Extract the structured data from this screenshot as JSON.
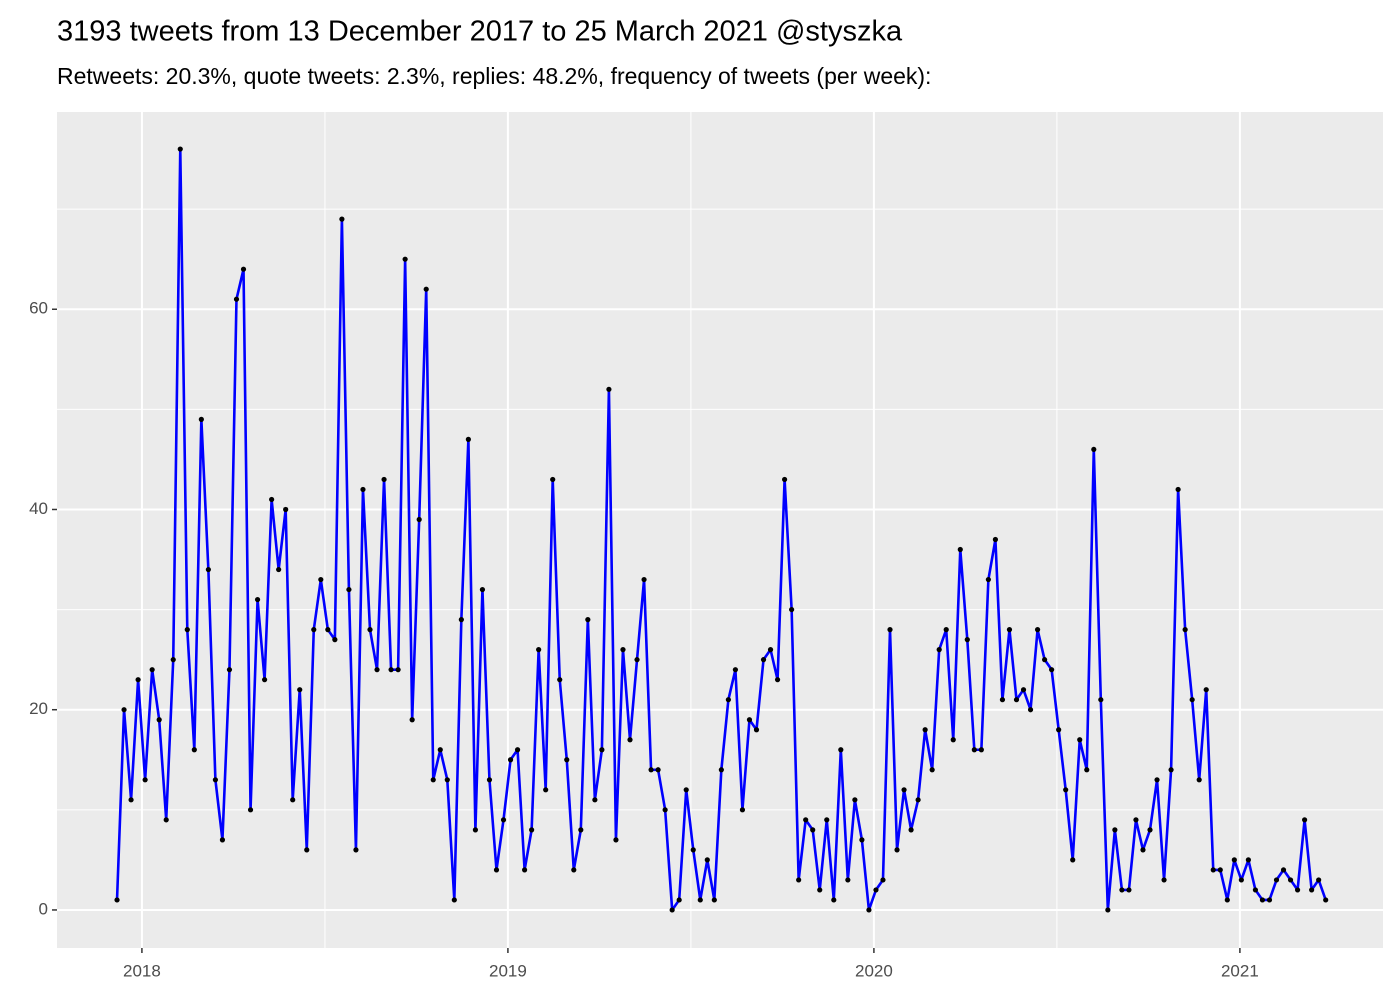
{
  "chart_data": {
    "type": "line",
    "title": "3193 tweets from 13 December 2017 to 25 March 2021 @styszka",
    "subtitle": "Retweets: 20.3%, quote tweets: 2.3%, replies: 48.2%, frequency of tweets (per week):",
    "x": [
      2017.932,
      2017.9512,
      2017.9704,
      2017.9896,
      2018.0088,
      2018.028,
      2018.0472,
      2018.0664,
      2018.0856,
      2018.1048,
      2018.124,
      2018.1432,
      2018.1624,
      2018.1816,
      2018.2008,
      2018.22,
      2018.2392,
      2018.2584,
      2018.2776,
      2018.2968,
      2018.316,
      2018.3352,
      2018.3544,
      2018.3736,
      2018.3928,
      2018.412,
      2018.4312,
      2018.4504,
      2018.4696,
      2018.4888,
      2018.508,
      2018.5272,
      2018.5464,
      2018.5656,
      2018.5848,
      2018.604,
      2018.6232,
      2018.6424,
      2018.6616,
      2018.6808,
      2018.7,
      2018.7192,
      2018.7384,
      2018.7576,
      2018.7768,
      2018.796,
      2018.8152,
      2018.8344,
      2018.8536,
      2018.8728,
      2018.892,
      2018.9112,
      2018.9304,
      2018.9496,
      2018.9688,
      2018.988,
      2019.0072,
      2019.0264,
      2019.0456,
      2019.0648,
      2019.084,
      2019.1032,
      2019.1224,
      2019.1416,
      2019.1608,
      2019.18,
      2019.1992,
      2019.2184,
      2019.2376,
      2019.2568,
      2019.276,
      2019.2952,
      2019.3144,
      2019.3336,
      2019.3528,
      2019.372,
      2019.3912,
      2019.4104,
      2019.4296,
      2019.4488,
      2019.468,
      2019.4872,
      2019.5064,
      2019.5256,
      2019.5448,
      2019.564,
      2019.5832,
      2019.6024,
      2019.6216,
      2019.6408,
      2019.66,
      2019.6792,
      2019.6984,
      2019.7176,
      2019.7368,
      2019.756,
      2019.7752,
      2019.7944,
      2019.8136,
      2019.8328,
      2019.852,
      2019.8712,
      2019.8904,
      2019.9096,
      2019.9288,
      2019.948,
      2019.9672,
      2019.9864,
      2020.0056,
      2020.0248,
      2020.044,
      2020.0632,
      2020.0824,
      2020.1016,
      2020.1208,
      2020.14,
      2020.1592,
      2020.1784,
      2020.1976,
      2020.2168,
      2020.236,
      2020.2552,
      2020.2744,
      2020.2936,
      2020.3128,
      2020.332,
      2020.3512,
      2020.3704,
      2020.3896,
      2020.4088,
      2020.428,
      2020.4472,
      2020.4664,
      2020.4856,
      2020.5048,
      2020.524,
      2020.5432,
      2020.5624,
      2020.5816,
      2020.6008,
      2020.62,
      2020.6392,
      2020.6584,
      2020.6776,
      2020.6968,
      2020.716,
      2020.7352,
      2020.7544,
      2020.7736,
      2020.7928,
      2020.812,
      2020.8312,
      2020.8504,
      2020.8696,
      2020.8888,
      2020.908,
      2020.9272,
      2020.9464,
      2020.9656,
      2020.9848,
      2021.004,
      2021.0232,
      2021.0424,
      2021.0616,
      2021.0808,
      2021.1,
      2021.1192,
      2021.1384,
      2021.1576,
      2021.1768,
      2021.196,
      2021.2152,
      2021.2344
    ],
    "series": [
      {
        "color": "#0000ff",
        "point_color": "#000000",
        "values": [
          1,
          20,
          11,
          23,
          13,
          24,
          19,
          9,
          25,
          76,
          28,
          16,
          49,
          34,
          13,
          7,
          24,
          61,
          64,
          10,
          31,
          23,
          41,
          34,
          40,
          11,
          22,
          6,
          28,
          33,
          28,
          27,
          69,
          32,
          6,
          42,
          28,
          24,
          43,
          24,
          24,
          65,
          19,
          39,
          62,
          13,
          16,
          13,
          1,
          29,
          47,
          8,
          32,
          13,
          4,
          9,
          15,
          16,
          4,
          8,
          26,
          12,
          43,
          23,
          15,
          4,
          8,
          29,
          11,
          16,
          52,
          7,
          26,
          17,
          25,
          33,
          14,
          14,
          10,
          0,
          1,
          12,
          6,
          1,
          5,
          1,
          14,
          21,
          24,
          10,
          19,
          18,
          25,
          26,
          23,
          43,
          30,
          3,
          9,
          8,
          2,
          9,
          1,
          16,
          3,
          11,
          7,
          0,
          2,
          3,
          28,
          6,
          12,
          8,
          11,
          18,
          14,
          26,
          28,
          17,
          36,
          27,
          16,
          16,
          33,
          37,
          21,
          28,
          21,
          22,
          20,
          28,
          25,
          24,
          18,
          12,
          5,
          17,
          14,
          46,
          21,
          0,
          8,
          2,
          2,
          9,
          6,
          8,
          13,
          3,
          14,
          42,
          28,
          21,
          13,
          22,
          4,
          4,
          1,
          5,
          3,
          5,
          2,
          1,
          1,
          3,
          4,
          3,
          2,
          9,
          2,
          3,
          1
        ]
      }
    ],
    "xlim": [
      2017.768,
      2021.391
    ],
    "xticks": [
      2018,
      2019,
      2020,
      2021
    ],
    "ylim": [
      -3.8,
      79.7
    ],
    "yticks": [
      0,
      20,
      40,
      60
    ],
    "grid": true
  }
}
